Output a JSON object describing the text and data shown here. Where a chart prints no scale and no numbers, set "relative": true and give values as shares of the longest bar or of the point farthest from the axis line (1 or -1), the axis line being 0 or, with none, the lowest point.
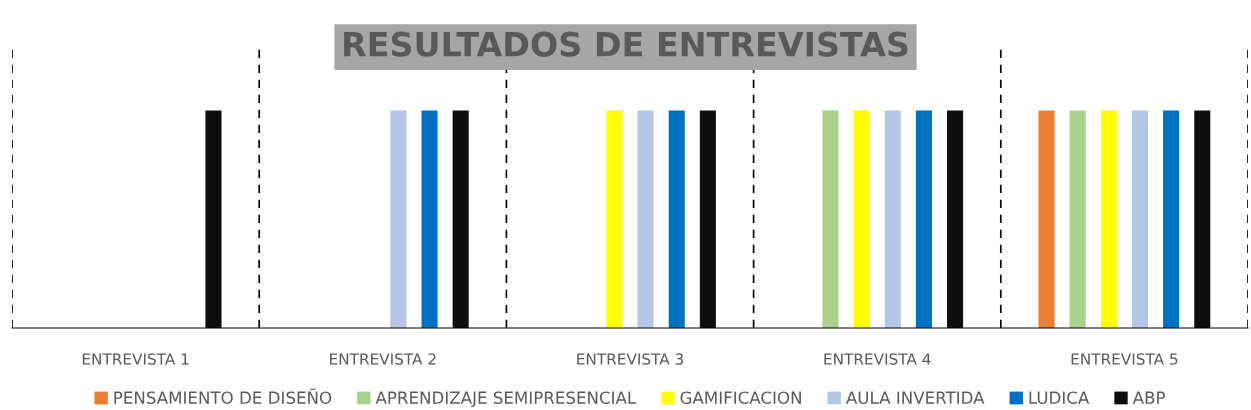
{
  "chart_data": {
    "type": "bar",
    "title": "RESULTADOS DE ENTREVISTAS",
    "relative": true,
    "categories": [
      "ENTREVISTA 1",
      "ENTREVISTA 2",
      "ENTREVISTA 3",
      "ENTREVISTA 4",
      "ENTREVISTA 5"
    ],
    "series": [
      {
        "name": "PENSAMIENTO DE DISEÑO",
        "color": "#ed7d31",
        "values": [
          null,
          null,
          null,
          null,
          1
        ]
      },
      {
        "name": "APRENDIZAJE SEMIPRESENCIAL",
        "color": "#a9d18e",
        "values": [
          null,
          null,
          null,
          1,
          1
        ]
      },
      {
        "name": "GAMIFICACION",
        "color": "#ffff00",
        "values": [
          null,
          null,
          1,
          1,
          1
        ]
      },
      {
        "name": "AULA INVERTIDA",
        "color": "#b4c7e7",
        "values": [
          null,
          1,
          1,
          1,
          1
        ]
      },
      {
        "name": "LUDICA",
        "color": "#0070c0",
        "values": [
          null,
          1,
          1,
          1,
          1
        ]
      },
      {
        "name": "ABP",
        "color": "#0d0d0d",
        "values": [
          1,
          1,
          1,
          1,
          1
        ]
      }
    ],
    "grid": "x",
    "legend": "bottom"
  }
}
